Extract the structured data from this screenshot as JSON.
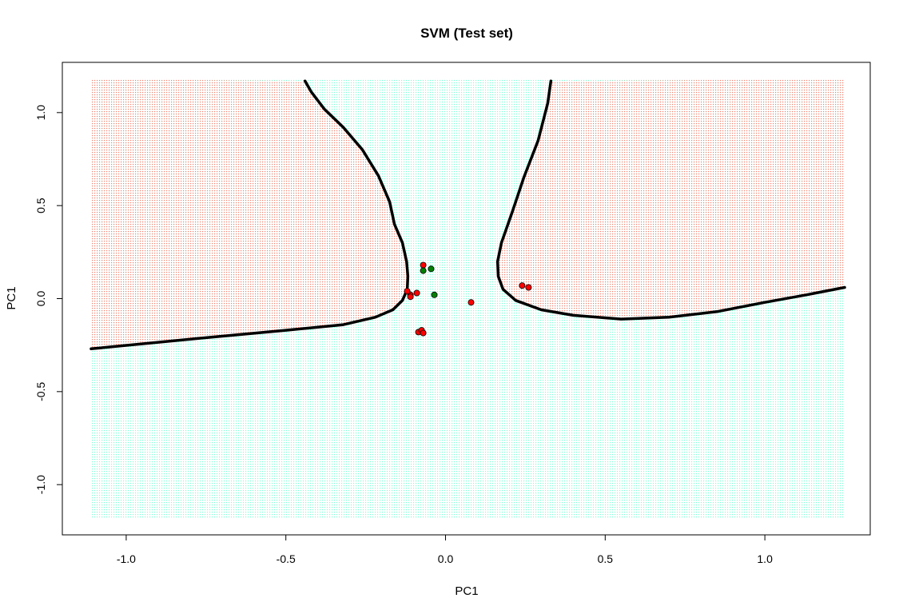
{
  "chart_data": {
    "type": "scatter",
    "title": "SVM (Test set)",
    "xlabel": "PC1",
    "ylabel": "PC1",
    "xlim": [
      -1.2,
      1.33
    ],
    "ylim": [
      -1.27,
      1.27
    ],
    "grid_xlim": [
      -1.11,
      1.25
    ],
    "grid_ylim": [
      -1.18,
      1.18
    ],
    "x_ticks": [
      -1.0,
      -0.5,
      0.0,
      0.5,
      1.0
    ],
    "x_tick_labels": [
      "-1.0",
      "-0.5",
      "0.0",
      "0.5",
      "1.0"
    ],
    "y_ticks": [
      -1.0,
      -0.5,
      0.0,
      0.5,
      1.0
    ],
    "y_tick_labels": [
      "-1.0",
      "-0.5",
      "0.0",
      "0.5",
      "1.0"
    ],
    "grid": false,
    "colors": {
      "region_class_0": "#fa8072",
      "region_class_1": "#7fffd4",
      "point_class_0": "#ff0000",
      "point_class_1": "#008000",
      "boundary": "#000000"
    },
    "decision_boundary": [
      {
        "name": "left-boundary",
        "x": [
          -0.44,
          -0.42,
          -0.38,
          -0.32,
          -0.26,
          -0.21,
          -0.175,
          -0.16,
          -0.135,
          -0.122,
          -0.118,
          -0.12,
          -0.135,
          -0.165,
          -0.22,
          -0.32,
          -0.5,
          -0.75,
          -1.11
        ],
        "y": [
          1.17,
          1.11,
          1.02,
          0.92,
          0.8,
          0.66,
          0.52,
          0.4,
          0.3,
          0.2,
          0.12,
          0.05,
          -0.01,
          -0.06,
          -0.1,
          -0.14,
          -0.17,
          -0.21,
          -0.27
        ]
      },
      {
        "name": "right-boundary",
        "x": [
          0.33,
          0.32,
          0.29,
          0.245,
          0.21,
          0.175,
          0.163,
          0.165,
          0.18,
          0.22,
          0.3,
          0.4,
          0.55,
          0.7,
          0.85,
          1.0,
          1.13,
          1.25
        ],
        "y": [
          1.17,
          1.05,
          0.85,
          0.65,
          0.47,
          0.3,
          0.2,
          0.12,
          0.05,
          -0.01,
          -0.06,
          -0.09,
          -0.11,
          -0.1,
          -0.07,
          -0.02,
          0.02,
          0.06
        ]
      }
    ],
    "series": [
      {
        "name": "0",
        "x": [
          -0.07,
          -0.09,
          -0.11,
          -0.12,
          -0.11,
          0.08,
          0.24,
          0.26,
          -0.085,
          -0.075,
          -0.07
        ],
        "y": [
          0.18,
          0.03,
          0.02,
          0.04,
          0.01,
          -0.02,
          0.07,
          0.06,
          -0.18,
          -0.17,
          -0.185
        ]
      },
      {
        "name": "1",
        "x": [
          -0.07,
          -0.045,
          -0.035
        ],
        "y": [
          0.15,
          0.16,
          0.02
        ]
      }
    ]
  }
}
